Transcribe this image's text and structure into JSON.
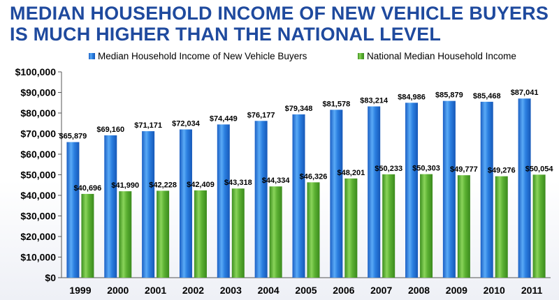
{
  "title_lines": [
    "MEDIAN HOUSEHOLD INCOME OF NEW VEHICLE BUYERS",
    "IS MUCH HIGHER THAN THE NATIONAL LEVEL"
  ],
  "chart_data": {
    "type": "bar",
    "categories": [
      "1999",
      "2000",
      "2001",
      "2002",
      "2003",
      "2004",
      "2005",
      "2006",
      "2007",
      "2008",
      "2009",
      "2010",
      "2011"
    ],
    "series": [
      {
        "name": "Median Household Income of New Vehicle Buyers",
        "color": "#2f86e6",
        "values": [
          65879,
          69160,
          71171,
          72034,
          74449,
          76177,
          79348,
          81578,
          83214,
          84986,
          85879,
          85468,
          87041
        ],
        "labels": [
          "$65,879",
          "$69,160",
          "$71,171",
          "$72,034",
          "$74,449",
          "$76,177",
          "$79,348",
          "$81,578",
          "$83,214",
          "$84,986",
          "$85,879",
          "$85,468",
          "$87,041"
        ]
      },
      {
        "name": "National Median Household Income",
        "color": "#5db532",
        "values": [
          40696,
          41990,
          42228,
          42409,
          43318,
          44334,
          46326,
          48201,
          50233,
          50303,
          49777,
          49276,
          50054
        ],
        "labels": [
          "$40,696",
          "$41,990",
          "$42,228",
          "$42,409",
          "$43,318",
          "$44,334",
          "$46,326",
          "$48,201",
          "$50,233",
          "$50,303",
          "$49,777",
          "$49,276",
          "$50,054"
        ]
      }
    ],
    "ylim": [
      0,
      100000
    ],
    "yticks": [
      0,
      10000,
      20000,
      30000,
      40000,
      50000,
      60000,
      70000,
      80000,
      90000,
      100000
    ],
    "ytick_labels": [
      "$0",
      "$10,000",
      "$20,000",
      "$30,000",
      "$40,000",
      "$50,000",
      "$60,000",
      "$70,000",
      "$80,000",
      "$90,000",
      "$100,000"
    ],
    "xlabel": "",
    "ylabel": "",
    "grid": false,
    "legend_position": "top-right"
  }
}
